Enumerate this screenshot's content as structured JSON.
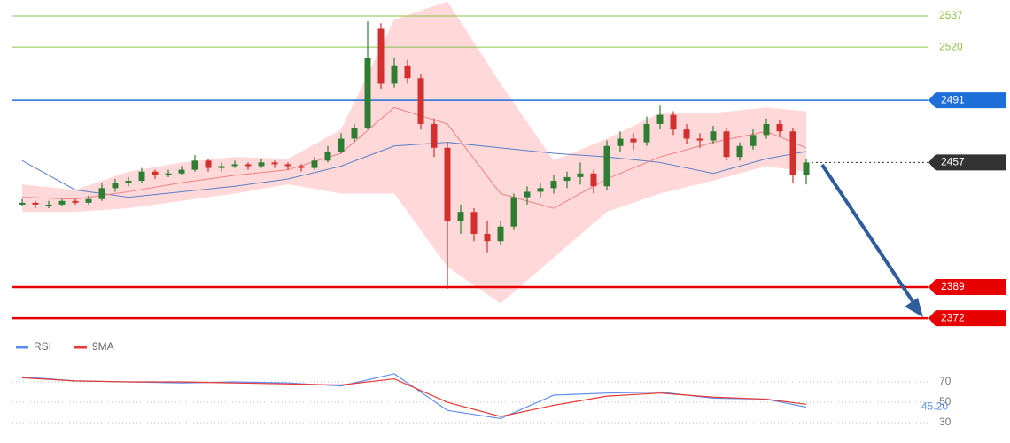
{
  "chart_data": {
    "type": "candlestick",
    "ylim": [
      2364.3,
      2545.7
    ],
    "candles": [
      [
        2434,
        2437,
        2433,
        2435
      ],
      [
        2435,
        2436,
        2432,
        2434
      ],
      [
        2434,
        2436,
        2432,
        2434
      ],
      [
        2434,
        2437,
        2433,
        2436
      ],
      [
        2436,
        2437,
        2434,
        2435
      ],
      [
        2435,
        2439,
        2434,
        2437
      ],
      [
        2437,
        2446,
        2436,
        2443
      ],
      [
        2443,
        2448,
        2441,
        2446
      ],
      [
        2446,
        2449,
        2444,
        2447
      ],
      [
        2447,
        2454,
        2446,
        2452
      ],
      [
        2452,
        2453,
        2448,
        2450
      ],
      [
        2450,
        2453,
        2449,
        2451
      ],
      [
        2451,
        2455,
        2450,
        2453
      ],
      [
        2453,
        2461,
        2452,
        2458
      ],
      [
        2458,
        2459,
        2452,
        2454
      ],
      [
        2454,
        2457,
        2452,
        2455
      ],
      [
        2455,
        2458,
        2454,
        2456
      ],
      [
        2456,
        2457,
        2453,
        2455
      ],
      [
        2455,
        2459,
        2454,
        2457
      ],
      [
        2457,
        2458,
        2454,
        2456
      ],
      [
        2456,
        2457,
        2453,
        2455
      ],
      [
        2455,
        2456,
        2452,
        2454
      ],
      [
        2454,
        2460,
        2453,
        2458
      ],
      [
        2458,
        2466,
        2457,
        2463
      ],
      [
        2463,
        2473,
        2462,
        2470
      ],
      [
        2470,
        2478,
        2468,
        2476
      ],
      [
        2476,
        2534,
        2475,
        2514
      ],
      [
        2530,
        2533,
        2497,
        2500
      ],
      [
        2500,
        2514,
        2498,
        2510
      ],
      [
        2510,
        2513,
        2500,
        2503
      ],
      [
        2503,
        2505,
        2475,
        2478
      ],
      [
        2478,
        2481,
        2460,
        2465
      ],
      [
        2465,
        2468,
        2388,
        2425
      ],
      [
        2425,
        2434,
        2418,
        2430
      ],
      [
        2430,
        2432,
        2414,
        2418
      ],
      [
        2418,
        2425,
        2408,
        2414
      ],
      [
        2414,
        2425,
        2412,
        2422
      ],
      [
        2422,
        2440,
        2420,
        2438
      ],
      [
        2438,
        2444,
        2434,
        2441
      ],
      [
        2441,
        2446,
        2438,
        2443
      ],
      [
        2443,
        2450,
        2440,
        2447
      ],
      [
        2447,
        2452,
        2443,
        2449
      ],
      [
        2449,
        2457,
        2445,
        2451
      ],
      [
        2451,
        2453,
        2440,
        2444
      ],
      [
        2444,
        2469,
        2442,
        2466
      ],
      [
        2466,
        2474,
        2463,
        2470
      ],
      [
        2470,
        2473,
        2464,
        2468
      ],
      [
        2468,
        2482,
        2466,
        2478
      ],
      [
        2478,
        2488,
        2475,
        2483
      ],
      [
        2483,
        2485,
        2472,
        2475
      ],
      [
        2475,
        2478,
        2467,
        2470
      ],
      [
        2470,
        2473,
        2465,
        2469
      ],
      [
        2469,
        2477,
        2467,
        2474
      ],
      [
        2474,
        2476,
        2458,
        2460
      ],
      [
        2460,
        2468,
        2458,
        2466
      ],
      [
        2466,
        2475,
        2464,
        2472
      ],
      [
        2472,
        2481,
        2470,
        2478
      ],
      [
        2478,
        2480,
        2471,
        2474
      ],
      [
        2474,
        2476,
        2446,
        2450
      ],
      [
        2450,
        2459,
        2445,
        2457
      ]
    ],
    "up_color": "#2e7d32",
    "down_color": "#d32f2f",
    "indicator_x": [
      0,
      4,
      8,
      12,
      16,
      20,
      24,
      28,
      32,
      36,
      40,
      44,
      48,
      52,
      56,
      59
    ],
    "ma_long": {
      "color": "#5b7fc7",
      "values": [
        2458,
        2442,
        2438,
        2441,
        2444,
        2448,
        2455,
        2466,
        2468,
        2465,
        2462,
        2460,
        2457,
        2451,
        2459,
        2463
      ]
    },
    "ma_short": {
      "color": "#f08080",
      "values": [
        2438,
        2437,
        2441,
        2446,
        2450,
        2453,
        2462,
        2487,
        2478,
        2440,
        2432,
        2448,
        2460,
        2468,
        2474,
        2465
      ]
    },
    "bb_upper": [
      2445,
      2442,
      2452,
      2457,
      2460,
      2459,
      2475,
      2535,
      2545,
      2500,
      2458,
      2470,
      2484,
      2484,
      2487,
      2485
    ],
    "bb_lower": [
      2430,
      2430,
      2432,
      2436,
      2440,
      2445,
      2440,
      2440,
      2400,
      2380,
      2405,
      2430,
      2440,
      2447,
      2455,
      2452
    ],
    "band_color": "#ffb3b3",
    "levels": [
      {
        "value": 2537,
        "color": "#8bc34a",
        "boxed": false,
        "line": "solid",
        "width": 1
      },
      {
        "value": 2520,
        "color": "#8bc34a",
        "boxed": false,
        "line": "solid",
        "width": 1
      },
      {
        "value": 2491,
        "color": "#1e6fd9",
        "boxed": true,
        "line": "solid",
        "width": 1.5
      },
      {
        "value": 2457,
        "color": "#333333",
        "boxed": true,
        "line": "dotted",
        "width": 1
      },
      {
        "value": 2389,
        "color": "#e60000",
        "boxed": true,
        "line": "solid",
        "width": 2.5
      },
      {
        "value": 2372,
        "color": "#e60000",
        "boxed": true,
        "line": "solid",
        "width": 2.5
      }
    ],
    "rsi": {
      "ylim": [
        10,
        97
      ],
      "yticks": [
        70,
        50,
        30
      ],
      "series": [
        {
          "name": "RSI",
          "color": "#5b8def",
          "values": [
            75,
            71,
            70,
            69,
            70,
            69,
            66,
            78,
            42,
            34,
            57,
            59,
            60,
            54,
            53,
            45.2
          ]
        },
        {
          "name": "9MA",
          "color": "#e53935",
          "values": [
            74,
            71,
            70,
            70,
            69,
            68,
            67,
            73,
            50,
            36,
            47,
            56,
            59,
            55,
            53,
            48
          ]
        }
      ],
      "last_label": "45.20"
    }
  }
}
